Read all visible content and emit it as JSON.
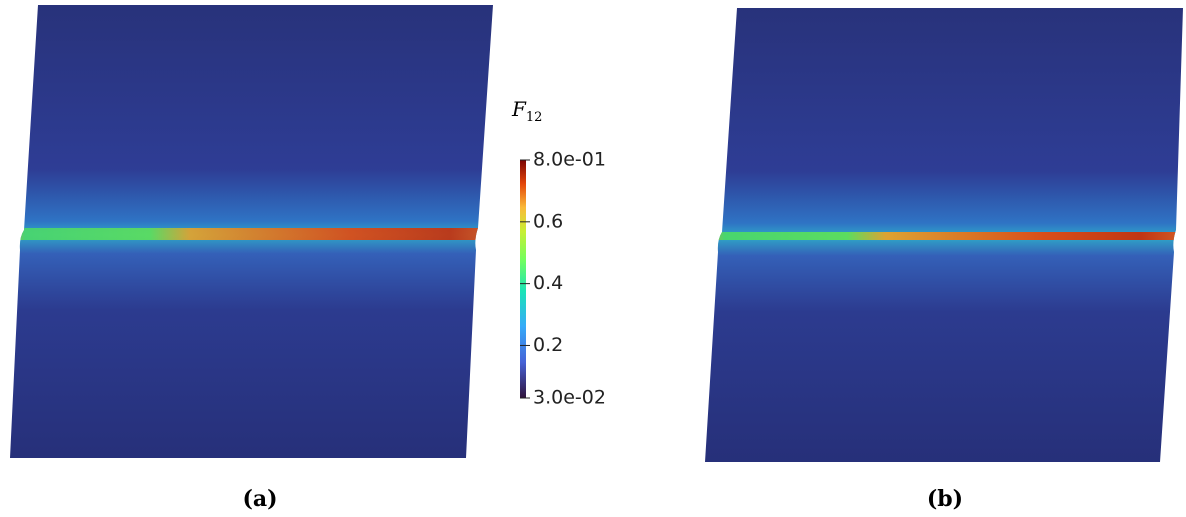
{
  "colorbar": {
    "title_symbol": "F",
    "title_subscript": "12",
    "lim": [
      0.03,
      0.8
    ],
    "ticks": [
      {
        "value": 0.8,
        "label": "8.0e-01"
      },
      0.6,
      0.4,
      0.2,
      {
        "value": 0.03,
        "label": "3.0e-02"
      }
    ]
  },
  "panels": [
    {
      "label": "(a)"
    },
    {
      "label": "(b)"
    }
  ]
}
